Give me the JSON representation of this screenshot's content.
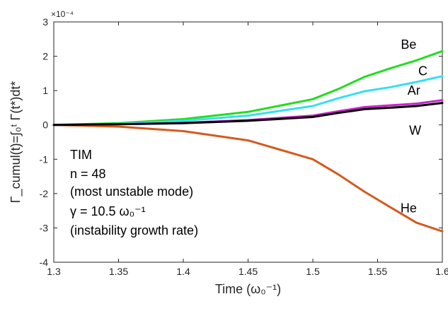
{
  "chart_data": {
    "type": "line",
    "xlabel": "Time (ω₀⁻¹)",
    "ylabel": "Γ_cumul(t)=∫₀ᵗ Γ(t*)dt*",
    "xlim": [
      1.3,
      1.6
    ],
    "ylim": [
      -4,
      3
    ],
    "y_exponent_label": "×10⁻⁴",
    "x_ticks": [
      "1.3",
      "1.35",
      "1.4",
      "1.45",
      "1.5",
      "1.55",
      "1.6"
    ],
    "y_ticks": [
      "-4",
      "-3",
      "-2",
      "-1",
      "0",
      "1",
      "2",
      "3"
    ],
    "grid": false,
    "annotation_lines": [
      "TIM",
      "n = 48",
      "(most unstable mode)",
      "γ = 10.5 ω₀⁻¹",
      "(instability growth rate)"
    ],
    "x": [
      1.3,
      1.35,
      1.4,
      1.45,
      1.5,
      1.52,
      1.54,
      1.56,
      1.58,
      1.6
    ],
    "series": [
      {
        "name": "Be",
        "color": "#22dd22",
        "values": [
          0,
          0.05,
          0.17,
          0.38,
          0.75,
          1.05,
          1.4,
          1.65,
          1.88,
          2.15
        ]
      },
      {
        "name": "C",
        "color": "#33e0f0",
        "values": [
          0,
          0.03,
          0.12,
          0.27,
          0.55,
          0.78,
          0.98,
          1.1,
          1.25,
          1.42
        ]
      },
      {
        "name": "Ar",
        "color": "#cc22cc",
        "values": [
          0,
          0.02,
          0.06,
          0.14,
          0.27,
          0.4,
          0.52,
          0.57,
          0.62,
          0.72
        ]
      },
      {
        "name": "W",
        "color": "#000000",
        "values": [
          0,
          0.02,
          0.05,
          0.12,
          0.23,
          0.35,
          0.46,
          0.5,
          0.55,
          0.64
        ]
      },
      {
        "name": "He",
        "color": "#d55a1e",
        "values": [
          0,
          -0.05,
          -0.18,
          -0.45,
          -1.0,
          -1.45,
          -1.95,
          -2.4,
          -2.85,
          -3.1
        ]
      }
    ]
  }
}
